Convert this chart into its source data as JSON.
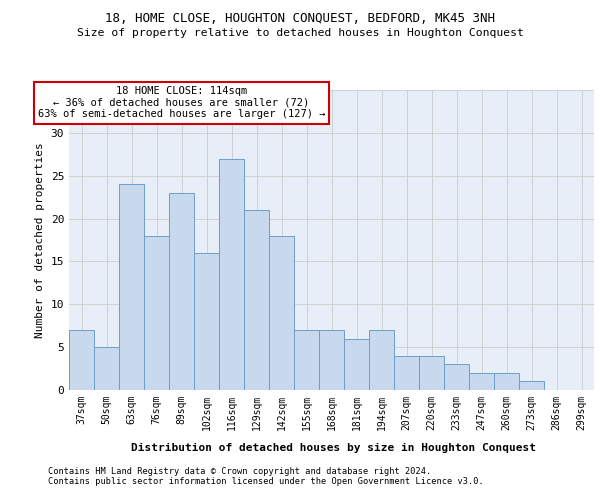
{
  "title1": "18, HOME CLOSE, HOUGHTON CONQUEST, BEDFORD, MK45 3NH",
  "title2": "Size of property relative to detached houses in Houghton Conquest",
  "xlabel": "Distribution of detached houses by size in Houghton Conquest",
  "ylabel": "Number of detached properties",
  "categories": [
    "37sqm",
    "50sqm",
    "63sqm",
    "76sqm",
    "89sqm",
    "102sqm",
    "116sqm",
    "129sqm",
    "142sqm",
    "155sqm",
    "168sqm",
    "181sqm",
    "194sqm",
    "207sqm",
    "220sqm",
    "233sqm",
    "247sqm",
    "260sqm",
    "273sqm",
    "286sqm",
    "299sqm"
  ],
  "values": [
    7,
    5,
    24,
    18,
    23,
    16,
    27,
    21,
    18,
    7,
    7,
    6,
    7,
    4,
    4,
    3,
    2,
    2,
    1,
    0,
    0
  ],
  "bar_color": "#c9d9ed",
  "bar_edge_color": "#6b9ec8",
  "annotation_box_text": "18 HOME CLOSE: 114sqm\n← 36% of detached houses are smaller (72)\n63% of semi-detached houses are larger (127) →",
  "annotation_box_color": "#ffffff",
  "annotation_box_edge_color": "#cc0000",
  "ylim": [
    0,
    35
  ],
  "yticks": [
    0,
    5,
    10,
    15,
    20,
    25,
    30,
    35
  ],
  "grid_color": "#cccccc",
  "bg_color": "#e8eef8",
  "footer1": "Contains HM Land Registry data © Crown copyright and database right 2024.",
  "footer2": "Contains public sector information licensed under the Open Government Licence v3.0."
}
